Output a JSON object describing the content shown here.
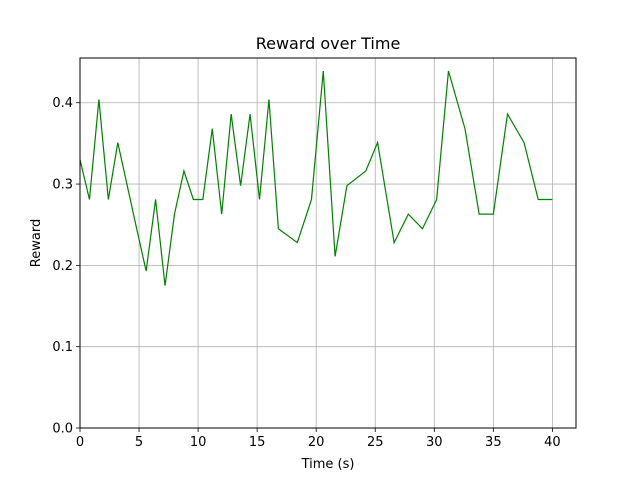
{
  "chart_data": {
    "type": "line",
    "title": "Reward over Time",
    "xlabel": "Time (s)",
    "ylabel": "Reward",
    "xlim": [
      0,
      42
    ],
    "ylim": [
      0,
      0.455
    ],
    "xticks": [
      0,
      5,
      10,
      15,
      20,
      25,
      30,
      35,
      40
    ],
    "yticks": [
      0.0,
      0.1,
      0.2,
      0.3,
      0.4
    ],
    "xtick_labels": [
      "0",
      "5",
      "10",
      "15",
      "20",
      "25",
      "30",
      "35",
      "40"
    ],
    "ytick_labels": [
      "0.0",
      "0.1",
      "0.2",
      "0.3",
      "0.4"
    ],
    "grid": true,
    "legend": "none",
    "series": [
      {
        "color": "#008000",
        "x": [
          0,
          0.8,
          1.6,
          2.4,
          3.2,
          4.0,
          4.8,
          5.6,
          6.4,
          7.2,
          8.0,
          8.8,
          9.6,
          10.4,
          11.2,
          12.0,
          12.8,
          13.6,
          14.4,
          15.2,
          16.0,
          16.8,
          18.4,
          19.6,
          20.6,
          21.6,
          22.6,
          24.2,
          25.2,
          26.6,
          27.8,
          29.0,
          30.2,
          31.2,
          32.6,
          33.8,
          35.0,
          36.2,
          37.6,
          38.8,
          40.0
        ],
        "y": [
          0.33,
          0.281,
          0.404,
          0.281,
          0.351,
          0.298,
          0.245,
          0.193,
          0.281,
          0.175,
          0.263,
          0.316,
          0.281,
          0.281,
          0.368,
          0.263,
          0.386,
          0.298,
          0.386,
          0.281,
          0.404,
          0.245,
          0.228,
          0.281,
          0.439,
          0.211,
          0.298,
          0.316,
          0.351,
          0.228,
          0.263,
          0.245,
          0.281,
          0.439,
          0.368,
          0.263,
          0.263,
          0.386,
          0.351,
          0.281,
          0.281
        ]
      }
    ]
  }
}
